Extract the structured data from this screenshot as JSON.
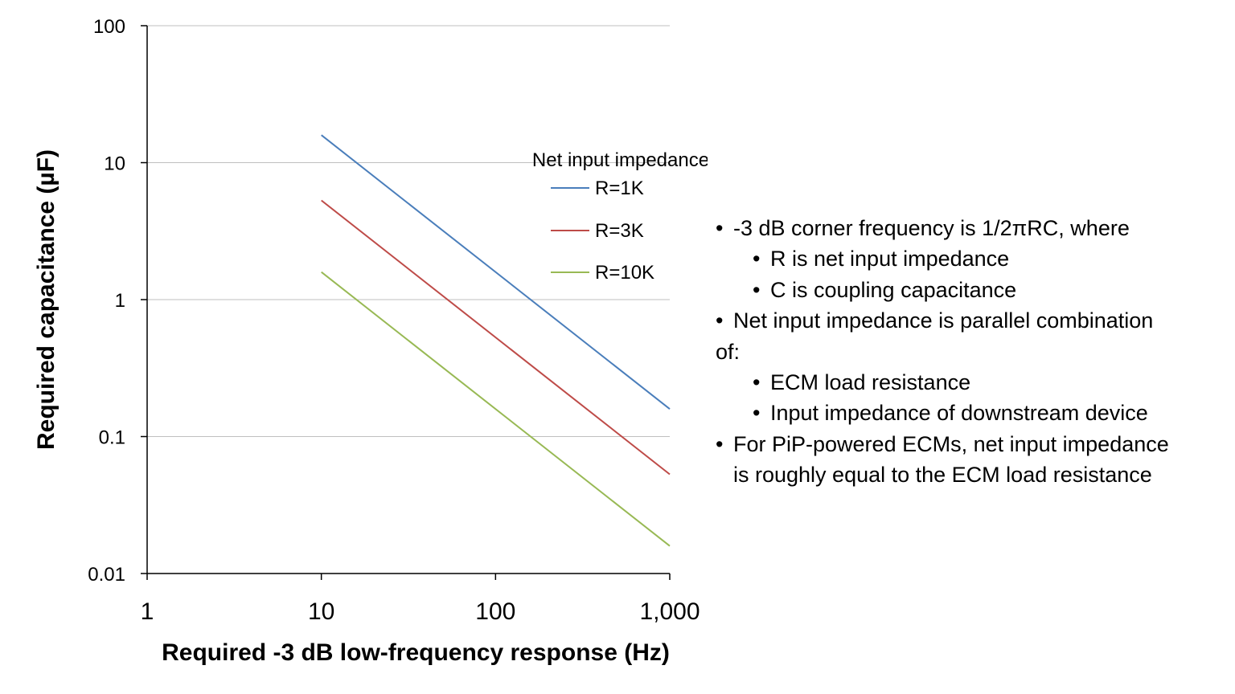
{
  "chart_data": {
    "type": "line",
    "xscale": "log",
    "yscale": "log",
    "xlim": [
      1,
      1000
    ],
    "ylim": [
      0.01,
      100
    ],
    "xlabel": "Required -3 dB low-frequency response (Hz)",
    "ylabel": "Required capacitance (µF)",
    "x_ticks": [
      1,
      10,
      100,
      1000
    ],
    "x_tick_labels": [
      "1",
      "10",
      "100",
      "1,000"
    ],
    "y_ticks": [
      0.01,
      0.1,
      1,
      10,
      100
    ],
    "y_tick_labels": [
      "0.01",
      "0.1",
      "1",
      "10",
      "100"
    ],
    "grid": "horizontal",
    "legend_title": "Net input impedance",
    "legend_position": "top-right",
    "series": [
      {
        "name": "R=1K",
        "color": "#4a7ebb",
        "x": [
          10,
          1000
        ],
        "y": [
          15.9,
          0.159
        ]
      },
      {
        "name": "R=3K",
        "color": "#be4b48",
        "x": [
          10,
          1000
        ],
        "y": [
          5.3,
          0.053
        ]
      },
      {
        "name": "R=10K",
        "color": "#98b954",
        "x": [
          10,
          1000
        ],
        "y": [
          1.59,
          0.0159
        ]
      }
    ]
  },
  "notes": {
    "bullet": "•",
    "items": [
      {
        "level": 1,
        "text": "-3 dB corner frequency is 1/2πRC, where"
      },
      {
        "level": 2,
        "text": "R is net input impedance"
      },
      {
        "level": 2,
        "text": "C is coupling capacitance"
      },
      {
        "level": 1,
        "text": "Net input impedance is parallel combination"
      },
      {
        "level": 0,
        "text": "of:"
      },
      {
        "level": 2,
        "text": "ECM load resistance"
      },
      {
        "level": 2,
        "text": "Input impedance of downstream device"
      },
      {
        "level": 1,
        "text": "For PiP-powered ECMs, net input impedance"
      },
      {
        "level": 1.5,
        "text": "is roughly equal to the ECM load resistance"
      }
    ]
  }
}
